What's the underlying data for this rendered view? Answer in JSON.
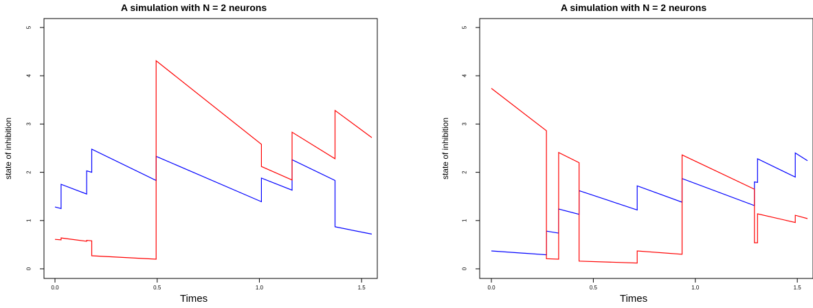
{
  "chart_data": [
    {
      "type": "line",
      "title": "A simulation with N = 2 neurons",
      "xlabel": "Times",
      "ylabel": "state of inhibition",
      "xlim": [
        0,
        1.55
      ],
      "ylim": [
        0,
        5
      ],
      "xticks": [
        "0.0",
        "0.5",
        "1.0",
        "1.5"
      ],
      "yticks": [
        "0",
        "1",
        "2",
        "3",
        "4",
        "5"
      ],
      "series": [
        {
          "color": "#0000ff",
          "points": [
            [
              0,
              1.28
            ],
            [
              0.03,
              1.25
            ],
            [
              0.03,
              1.75
            ],
            [
              0.155,
              1.55
            ],
            [
              0.155,
              2.03
            ],
            [
              0.18,
              2.0
            ],
            [
              0.18,
              2.48
            ],
            [
              0.495,
              1.83
            ],
            [
              0.495,
              2.33
            ],
            [
              1.01,
              1.39
            ],
            [
              1.01,
              1.88
            ],
            [
              1.16,
              1.63
            ],
            [
              1.16,
              2.26
            ],
            [
              1.37,
              1.83
            ],
            [
              1.37,
              0.87
            ],
            [
              1.55,
              0.72
            ]
          ]
        },
        {
          "color": "#ff0000",
          "points": [
            [
              0,
              0.61
            ],
            [
              0.03,
              0.6
            ],
            [
              0.03,
              0.64
            ],
            [
              0.155,
              0.57
            ],
            [
              0.155,
              0.59
            ],
            [
              0.18,
              0.58
            ],
            [
              0.18,
              0.27
            ],
            [
              0.495,
              0.2
            ],
            [
              0.495,
              4.31
            ],
            [
              1.01,
              2.58
            ],
            [
              1.01,
              2.12
            ],
            [
              1.16,
              1.84
            ],
            [
              1.16,
              2.83
            ],
            [
              1.37,
              2.28
            ],
            [
              1.37,
              3.28
            ],
            [
              1.55,
              2.72
            ]
          ]
        }
      ]
    },
    {
      "type": "line",
      "title": "A simulation with N = 2 neurons",
      "xlabel": "Times",
      "ylabel": "state of inhibition",
      "xlim": [
        0,
        1.55
      ],
      "ylim": [
        0,
        5
      ],
      "xticks": [
        "0.0",
        "0.5",
        "1.0",
        "1.5"
      ],
      "yticks": [
        "0",
        "1",
        "2",
        "3",
        "4",
        "5"
      ],
      "series": [
        {
          "color": "#0000ff",
          "points": [
            [
              0,
              0.37
            ],
            [
              0.27,
              0.29
            ],
            [
              0.27,
              0.78
            ],
            [
              0.33,
              0.74
            ],
            [
              0.33,
              1.24
            ],
            [
              0.43,
              1.13
            ],
            [
              0.43,
              1.62
            ],
            [
              0.715,
              1.22
            ],
            [
              0.715,
              1.72
            ],
            [
              0.935,
              1.38
            ],
            [
              0.935,
              1.87
            ],
            [
              1.29,
              1.31
            ],
            [
              1.29,
              1.8
            ],
            [
              1.305,
              1.79
            ],
            [
              1.305,
              2.28
            ],
            [
              1.49,
              1.9
            ],
            [
              1.49,
              2.4
            ],
            [
              1.55,
              2.24
            ]
          ]
        },
        {
          "color": "#ff0000",
          "points": [
            [
              0,
              3.74
            ],
            [
              0.27,
              2.86
            ],
            [
              0.27,
              0.21
            ],
            [
              0.33,
              0.2
            ],
            [
              0.33,
              2.41
            ],
            [
              0.43,
              2.2
            ],
            [
              0.43,
              0.16
            ],
            [
              0.715,
              0.12
            ],
            [
              0.715,
              0.37
            ],
            [
              0.935,
              0.3
            ],
            [
              0.935,
              2.36
            ],
            [
              1.29,
              1.65
            ],
            [
              1.29,
              0.54
            ],
            [
              1.305,
              0.54
            ],
            [
              1.305,
              1.14
            ],
            [
              1.49,
              0.96
            ],
            [
              1.49,
              1.11
            ],
            [
              1.55,
              1.04
            ]
          ]
        }
      ]
    }
  ]
}
